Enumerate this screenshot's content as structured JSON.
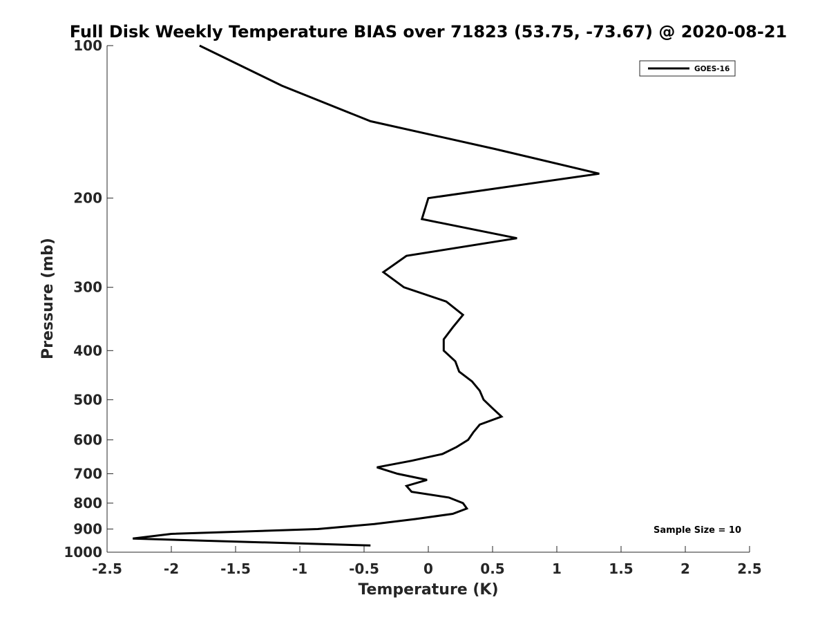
{
  "chart_data": {
    "type": "line",
    "title": "Full Disk Weekly Temperature BIAS over 71823 (53.75, -73.67) @ 2020-08-21",
    "xlabel": "Temperature (K)",
    "ylabel": "Pressure (mb)",
    "xlim": [
      -2.5,
      2.5
    ],
    "ylim": [
      100,
      1000
    ],
    "y_scale": "log",
    "y_reversed": true,
    "x_ticks": [
      "-2.5",
      "-2",
      "-1.5",
      "-1",
      "-0.5",
      "0",
      "0.5",
      "1",
      "1.5",
      "2",
      "2.5"
    ],
    "y_ticks": [
      "100",
      "200",
      "300",
      "400",
      "500",
      "600",
      "700",
      "800",
      "900",
      "1000"
    ],
    "grid": false,
    "legend_position": "top-right",
    "annotation": "Sample Size = 10",
    "series": [
      {
        "name": "GOES-16",
        "color": "#000000",
        "points": [
          {
            "x": -1.78,
            "p": 100
          },
          {
            "x": -1.14,
            "p": 120
          },
          {
            "x": -0.45,
            "p": 141
          },
          {
            "x": 0.52,
            "p": 160
          },
          {
            "x": 1.33,
            "p": 179
          },
          {
            "x": 0.0,
            "p": 200
          },
          {
            "x": -0.05,
            "p": 220
          },
          {
            "x": 0.69,
            "p": 240
          },
          {
            "x": -0.17,
            "p": 260
          },
          {
            "x": -0.35,
            "p": 280
          },
          {
            "x": -0.19,
            "p": 300
          },
          {
            "x": 0.14,
            "p": 320
          },
          {
            "x": 0.27,
            "p": 340
          },
          {
            "x": 0.19,
            "p": 360
          },
          {
            "x": 0.12,
            "p": 380
          },
          {
            "x": 0.12,
            "p": 400
          },
          {
            "x": 0.21,
            "p": 420
          },
          {
            "x": 0.24,
            "p": 440
          },
          {
            "x": 0.34,
            "p": 460
          },
          {
            "x": 0.4,
            "p": 480
          },
          {
            "x": 0.43,
            "p": 500
          },
          {
            "x": 0.5,
            "p": 520
          },
          {
            "x": 0.57,
            "p": 540
          },
          {
            "x": 0.4,
            "p": 560
          },
          {
            "x": 0.35,
            "p": 580
          },
          {
            "x": 0.31,
            "p": 600
          },
          {
            "x": 0.22,
            "p": 620
          },
          {
            "x": 0.11,
            "p": 640
          },
          {
            "x": -0.13,
            "p": 660
          },
          {
            "x": -0.4,
            "p": 680
          },
          {
            "x": -0.24,
            "p": 700
          },
          {
            "x": -0.01,
            "p": 720
          },
          {
            "x": -0.17,
            "p": 740
          },
          {
            "x": -0.13,
            "p": 760
          },
          {
            "x": 0.16,
            "p": 780
          },
          {
            "x": 0.27,
            "p": 800
          },
          {
            "x": 0.3,
            "p": 820
          },
          {
            "x": 0.19,
            "p": 840
          },
          {
            "x": -0.1,
            "p": 860
          },
          {
            "x": -0.42,
            "p": 880
          },
          {
            "x": -0.86,
            "p": 900
          },
          {
            "x": -2.0,
            "p": 920
          },
          {
            "x": -2.3,
            "p": 940
          },
          {
            "x": -0.45,
            "p": 970
          }
        ]
      }
    ]
  }
}
